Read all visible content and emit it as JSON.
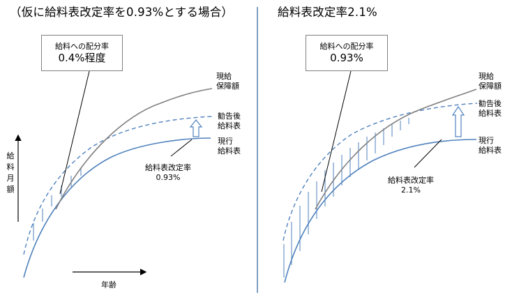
{
  "left_panel": {
    "title": "（仮に給料表改定率を0.93%とする場合）",
    "callout": {
      "caption": "給料への配分率",
      "value": "0.4%程度"
    },
    "labels": {
      "guaranteed": [
        "現給",
        "保障額"
      ],
      "recommended": [
        "勧告後",
        "給料表"
      ],
      "current": [
        "現行",
        "給料表"
      ],
      "rate_caption": "給料表改定率",
      "rate_value": "0.93%"
    }
  },
  "right_panel": {
    "title": "給料表改定率2.1%",
    "callout": {
      "caption": "給料への配分率",
      "value": "0.93%"
    },
    "labels": {
      "guaranteed": [
        "現給",
        "保障額"
      ],
      "recommended": [
        "勧告後",
        "給料表"
      ],
      "current": [
        "現行",
        "給料表"
      ],
      "rate_caption": "給料表改定率",
      "rate_value": "2.1%"
    }
  },
  "axes": {
    "y_label": [
      "給",
      "料",
      "月",
      "額"
    ],
    "x_label": "年齢"
  },
  "colors": {
    "current_curve": "#4f81bd",
    "recommended_curve": "#4f81bd",
    "guaranteed_curve": "#808080",
    "divider": "#7f9fbf"
  }
}
